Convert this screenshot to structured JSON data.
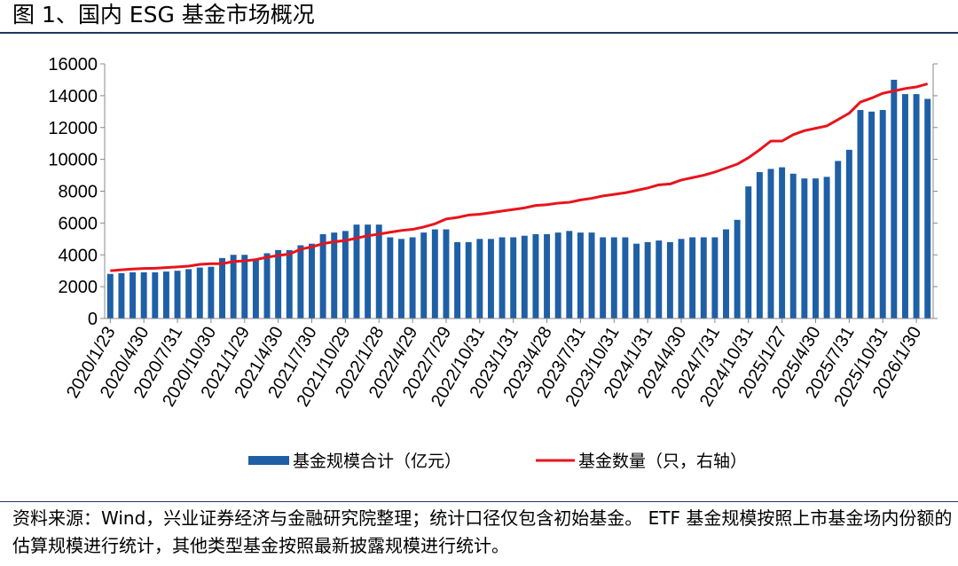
{
  "title": "图 1、国内 ESG 基金市场概况",
  "source_note": "资料来源：Wind，兴业证券经济与金融研究院整理；统计口径仅包含初始基金。 ETF 基金规模按照上市基金场内份额的估算规模进行统计，其他类型基金按照最新披露规模进行统计。",
  "colors": {
    "bar": "#1f5fa6",
    "line": "#e8141c",
    "rule": "#1f3864"
  },
  "chart_data": {
    "type": "bar",
    "title": "",
    "xlabel": "",
    "ylabel": "",
    "ylim": [
      0,
      16000
    ],
    "yticks": [
      "0",
      "2000",
      "4000",
      "6000",
      "8000",
      "10000",
      "12000",
      "14000",
      "16000"
    ],
    "legend_position": "bottom-center",
    "x_tick_labels": [
      "2020/1/23",
      "2020/4/30",
      "2020/7/31",
      "2020/10/30",
      "2021/1/29",
      "2021/4/30",
      "2021/7/30",
      "2021/10/29",
      "2022/1/28",
      "2022/4/29",
      "2022/7/29",
      "2022/10/31",
      "2023/1/31",
      "2023/4/28",
      "2023/7/31",
      "2023/10/31",
      "2024/1/31",
      "2024/4/30",
      "2024/7/31",
      "2024/10/31",
      "2025/1/27",
      "2025/4/30",
      "2025/7/31",
      "2025/10/31",
      "2026/1/30"
    ],
    "series": [
      {
        "name": "基金规模合计（亿元）",
        "type": "bar",
        "axis": "left",
        "values": [
          2800,
          2850,
          2900,
          2900,
          2900,
          2950,
          3000,
          3100,
          3200,
          3250,
          3800,
          4000,
          4000,
          3700,
          4100,
          4300,
          4300,
          4600,
          4700,
          5300,
          5400,
          5500,
          5900,
          5900,
          5900,
          5100,
          5000,
          5100,
          5400,
          5600,
          5600,
          4800,
          4800,
          5000,
          5000,
          5100,
          5100,
          5200,
          5300,
          5300,
          5400,
          5500,
          5400,
          5400,
          5100,
          5100,
          5100,
          4700,
          4800,
          4900,
          4800,
          5000,
          5100,
          5100,
          5100,
          5600,
          6200,
          8300,
          9200,
          9400,
          9500,
          9100,
          8800,
          8800,
          8900,
          9900,
          10600,
          13100,
          13000,
          13100,
          15000,
          14100,
          14100,
          13800
        ]
      },
      {
        "name": "基金数量（只，右轴）",
        "type": "line",
        "axis": "right",
        "values": [
          3000,
          3060,
          3110,
          3140,
          3160,
          3200,
          3240,
          3290,
          3400,
          3440,
          3440,
          3580,
          3620,
          3700,
          3850,
          3960,
          4050,
          4350,
          4500,
          4700,
          4820,
          4900,
          5050,
          5200,
          5300,
          5420,
          5530,
          5600,
          5750,
          5950,
          6250,
          6350,
          6500,
          6550,
          6650,
          6750,
          6850,
          6950,
          7100,
          7150,
          7250,
          7300,
          7450,
          7550,
          7700,
          7800,
          7900,
          8050,
          8200,
          8400,
          8450,
          8700,
          8850,
          9000,
          9200,
          9450,
          9700,
          10100,
          10600,
          11150,
          11150,
          11550,
          11800,
          11950,
          12100,
          12500,
          12900,
          13600,
          13850,
          14150,
          14300,
          14450,
          14550,
          14750
        ]
      }
    ],
    "legend": [
      "基金规模合计（亿元）",
      "基金数量（只，右轴）"
    ]
  }
}
